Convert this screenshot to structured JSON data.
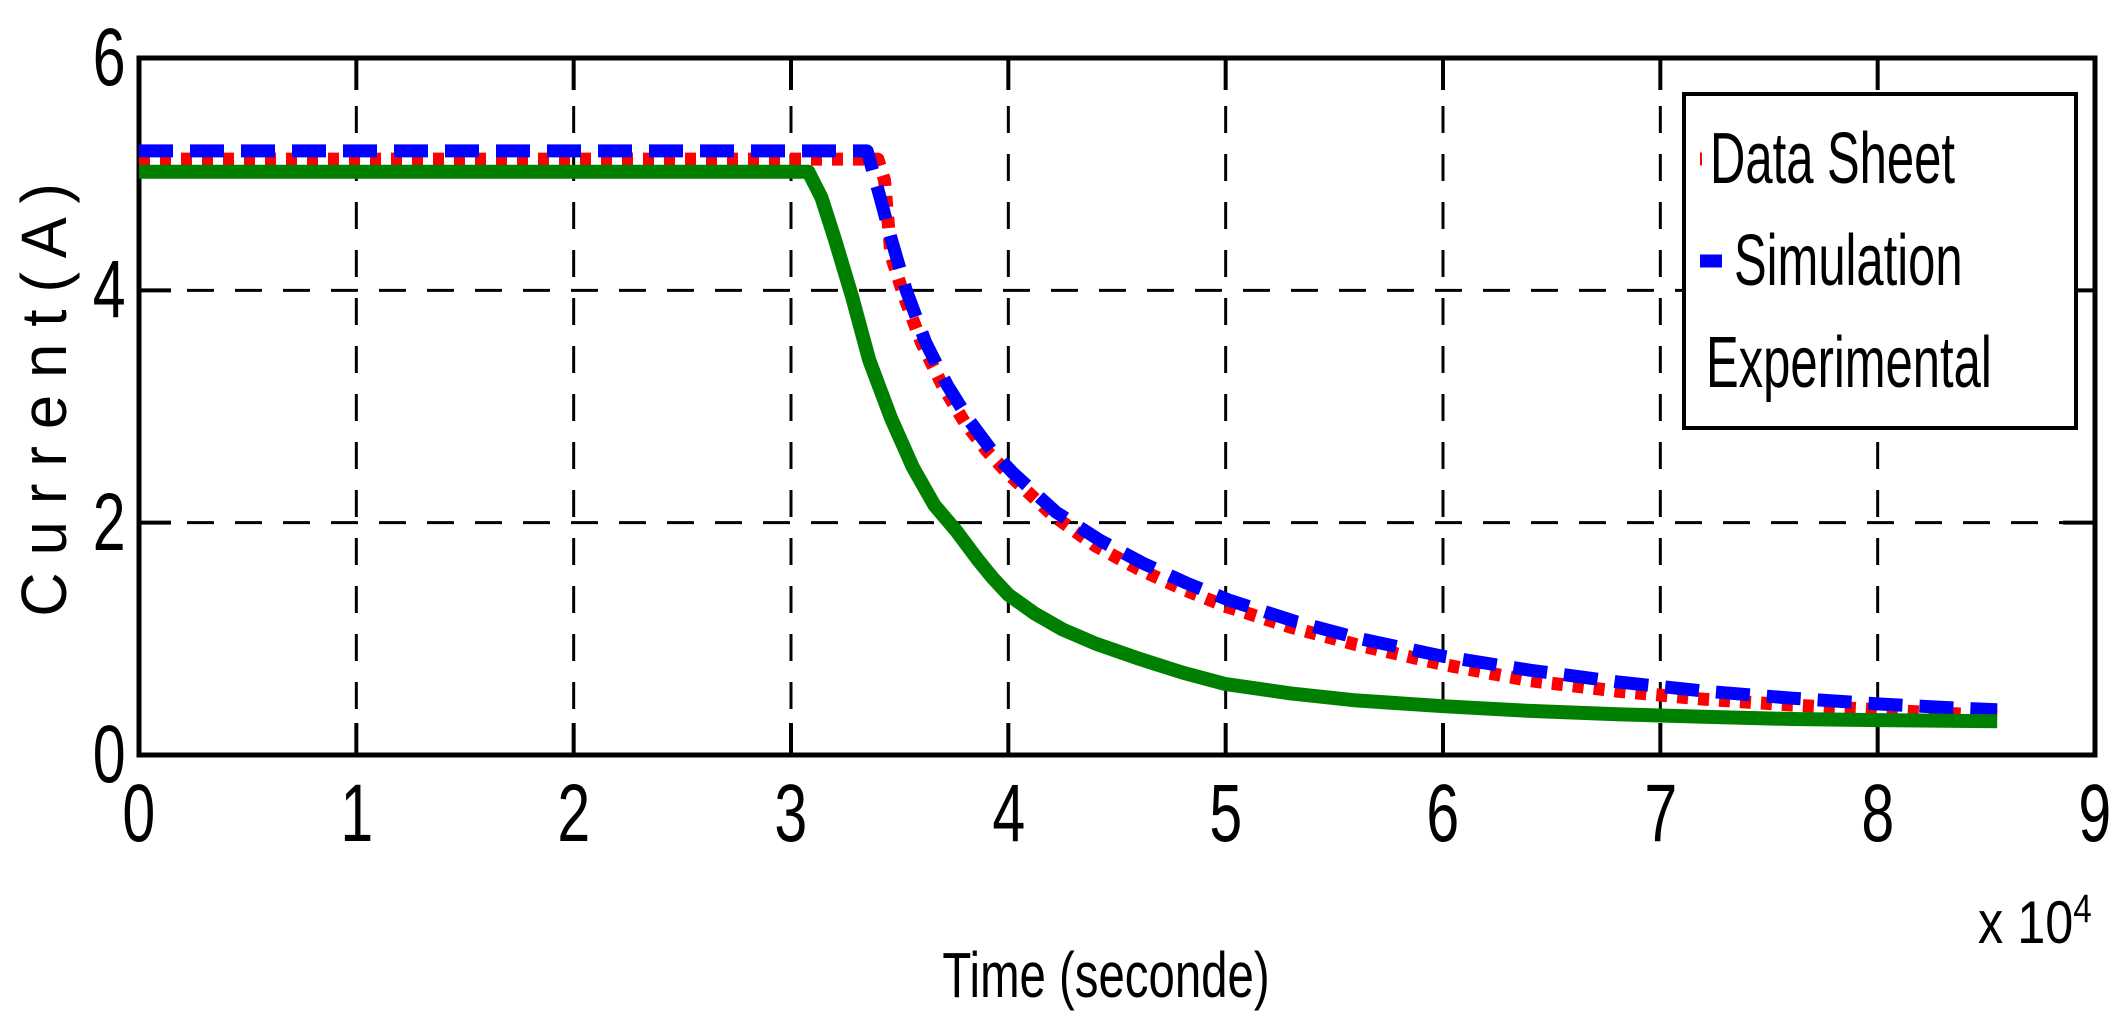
{
  "chart_data": {
    "type": "line",
    "title": "",
    "xlabel": "Time (seconde)",
    "ylabel": "C u r r e n t ( A )",
    "x_exponent": {
      "base": "x 10",
      "sup": "4"
    },
    "xlim": [
      0,
      9
    ],
    "ylim": [
      0,
      6
    ],
    "x_ticks": [
      0,
      1,
      2,
      3,
      4,
      5,
      6,
      7,
      8,
      9
    ],
    "y_ticks": [
      0,
      2,
      4,
      6
    ],
    "grid": {
      "on": true,
      "x_values": [
        1,
        2,
        3,
        4,
        5,
        6,
        7,
        8
      ],
      "y_values": [
        2,
        4
      ],
      "style": "dashed",
      "color": "#000000"
    },
    "legend": {
      "position": "top-right",
      "items": [
        {
          "label": "Data Sheet",
          "color": "#ff0000",
          "style": "dotted"
        },
        {
          "label": "Simulation",
          "color": "#0000ff",
          "style": "dashed"
        },
        {
          "label": "Experimental",
          "color": "#008000",
          "style": "solid"
        }
      ]
    },
    "series": [
      {
        "name": "Data Sheet",
        "color": "#ff0000",
        "style": "dotted",
        "points": [
          [
            0,
            5.13
          ],
          [
            3.4,
            5.13
          ],
          [
            3.43,
            4.95
          ],
          [
            3.46,
            4.3
          ],
          [
            3.52,
            3.95
          ],
          [
            3.6,
            3.55
          ],
          [
            3.7,
            3.17
          ],
          [
            3.8,
            2.86
          ],
          [
            3.9,
            2.62
          ],
          [
            4.0,
            2.42
          ],
          [
            4.2,
            2.07
          ],
          [
            4.4,
            1.8
          ],
          [
            4.6,
            1.6
          ],
          [
            4.8,
            1.43
          ],
          [
            5.0,
            1.28
          ],
          [
            5.3,
            1.1
          ],
          [
            5.6,
            0.95
          ],
          [
            6.0,
            0.78
          ],
          [
            6.4,
            0.64
          ],
          [
            6.8,
            0.55
          ],
          [
            7.2,
            0.48
          ],
          [
            7.6,
            0.43
          ],
          [
            8.0,
            0.39
          ],
          [
            8.3,
            0.36
          ],
          [
            8.55,
            0.34
          ]
        ]
      },
      {
        "name": "Simulation",
        "color": "#0000ff",
        "style": "dashed",
        "points": [
          [
            0,
            5.2
          ],
          [
            3.35,
            5.2
          ],
          [
            3.41,
            4.8
          ],
          [
            3.46,
            4.45
          ],
          [
            3.53,
            4.0
          ],
          [
            3.62,
            3.55
          ],
          [
            3.72,
            3.18
          ],
          [
            3.82,
            2.88
          ],
          [
            3.92,
            2.63
          ],
          [
            4.02,
            2.43
          ],
          [
            4.22,
            2.09
          ],
          [
            4.42,
            1.85
          ],
          [
            4.62,
            1.65
          ],
          [
            4.82,
            1.48
          ],
          [
            5.02,
            1.33
          ],
          [
            5.32,
            1.15
          ],
          [
            5.62,
            1.0
          ],
          [
            6.0,
            0.85
          ],
          [
            6.4,
            0.73
          ],
          [
            6.8,
            0.63
          ],
          [
            7.2,
            0.55
          ],
          [
            7.6,
            0.49
          ],
          [
            8.0,
            0.44
          ],
          [
            8.3,
            0.41
          ],
          [
            8.55,
            0.39
          ]
        ]
      },
      {
        "name": "Experimental",
        "color": "#008000",
        "style": "solid",
        "points": [
          [
            0,
            5.02
          ],
          [
            3.08,
            5.02
          ],
          [
            3.14,
            4.8
          ],
          [
            3.2,
            4.45
          ],
          [
            3.28,
            3.95
          ],
          [
            3.36,
            3.4
          ],
          [
            3.46,
            2.9
          ],
          [
            3.56,
            2.48
          ],
          [
            3.66,
            2.15
          ],
          [
            3.76,
            1.93
          ],
          [
            3.86,
            1.68
          ],
          [
            3.93,
            1.52
          ],
          [
            4.0,
            1.38
          ],
          [
            4.12,
            1.22
          ],
          [
            4.25,
            1.08
          ],
          [
            4.4,
            0.96
          ],
          [
            4.6,
            0.83
          ],
          [
            4.8,
            0.71
          ],
          [
            5.0,
            0.61
          ],
          [
            5.3,
            0.53
          ],
          [
            5.6,
            0.47
          ],
          [
            6.0,
            0.42
          ],
          [
            6.4,
            0.38
          ],
          [
            6.8,
            0.35
          ],
          [
            7.2,
            0.33
          ],
          [
            7.6,
            0.31
          ],
          [
            8.0,
            0.3
          ],
          [
            8.55,
            0.29
          ]
        ]
      }
    ]
  }
}
